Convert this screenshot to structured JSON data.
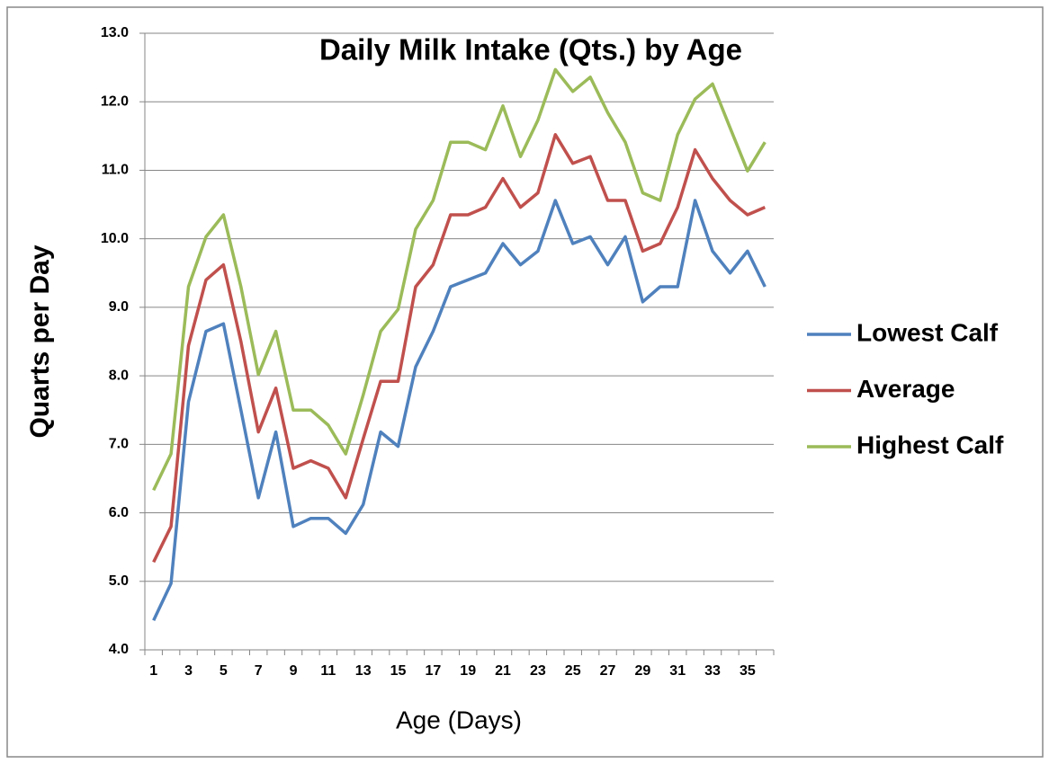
{
  "chart_data": {
    "type": "line",
    "title": "Daily Milk Intake (Qts.) by Age",
    "x_label": "Age (Days)",
    "y_label": "Quarts per Day",
    "categories": [
      "1",
      null,
      "3",
      null,
      "5",
      null,
      "7",
      null,
      "9",
      null,
      "11",
      null,
      "13",
      null,
      "15",
      null,
      "17",
      null,
      "19",
      null,
      "21",
      null,
      "23",
      null,
      "25",
      null,
      "27",
      null,
      "29",
      null,
      "31",
      null,
      "33",
      null,
      "35",
      null
    ],
    "series": [
      {
        "name": "Lowest Calf",
        "color": "#4f81bd",
        "values": [
          4.43,
          4.97,
          7.62,
          8.65,
          8.76,
          7.5,
          6.22,
          7.18,
          5.8,
          5.92,
          5.92,
          5.7,
          6.12,
          7.18,
          6.97,
          8.13,
          8.65,
          9.3,
          9.4,
          9.5,
          9.93,
          9.62,
          9.82,
          10.56,
          9.93,
          10.03,
          9.62,
          10.03,
          9.08,
          9.3,
          9.3,
          10.56,
          9.82,
          9.5,
          9.82,
          9.3
        ]
      },
      {
        "name": "Average",
        "color": "#c0504d",
        "values": [
          5.28,
          5.8,
          8.44,
          9.4,
          9.62,
          8.5,
          7.18,
          7.82,
          6.65,
          6.76,
          6.65,
          6.22,
          7.08,
          7.92,
          7.92,
          9.3,
          9.62,
          10.35,
          10.35,
          10.46,
          10.88,
          10.46,
          10.67,
          11.52,
          11.1,
          11.2,
          10.56,
          10.56,
          9.82,
          9.93,
          10.46,
          11.3,
          10.88,
          10.56,
          10.35,
          10.46
        ]
      },
      {
        "name": "Highest Calf",
        "color": "#9bbb59",
        "values": [
          6.33,
          6.86,
          9.3,
          10.03,
          10.35,
          9.3,
          8.02,
          8.65,
          7.5,
          7.5,
          7.28,
          6.86,
          7.72,
          8.65,
          8.97,
          10.14,
          10.56,
          11.41,
          11.41,
          11.3,
          11.94,
          11.2,
          11.73,
          12.47,
          12.15,
          12.36,
          11.84,
          11.41,
          10.67,
          10.56,
          11.52,
          12.04,
          12.26,
          11.62,
          10.99,
          11.41
        ]
      }
    ],
    "ylim": [
      4,
      13
    ],
    "yticks": [
      {
        "value": 4,
        "label": "4.0"
      },
      {
        "value": 5,
        "label": "5.0"
      },
      {
        "value": 6,
        "label": "6.0"
      },
      {
        "value": 7,
        "label": "7.0"
      },
      {
        "value": 8,
        "label": "8.0"
      },
      {
        "value": 9,
        "label": "9.0"
      },
      {
        "value": 10,
        "label": "10.0"
      },
      {
        "value": 11,
        "label": "11.0"
      },
      {
        "value": 12,
        "label": "12.0"
      },
      {
        "value": 13,
        "label": "13.0"
      }
    ],
    "grid": true,
    "legend": "right"
  }
}
